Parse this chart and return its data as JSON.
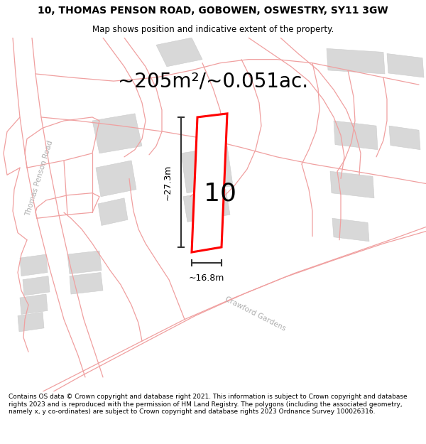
{
  "title": "10, THOMAS PENSON ROAD, GOBOWEN, OSWESTRY, SY11 3GW",
  "subtitle": "Map shows position and indicative extent of the property.",
  "area_text": "~205m²/~0.051ac.",
  "dim_width": "~16.8m",
  "dim_height": "~27.3m",
  "number_label": "10",
  "road_label_left": "Thomas Penson Road",
  "road_label_bottom": "Crawford Gardens",
  "footer": "Contains OS data © Crown copyright and database right 2021. This information is subject to Crown copyright and database rights 2023 and is reproduced with the permission of HM Land Registry. The polygons (including the associated geometry, namely x, y co-ordinates) are subject to Crown copyright and database rights 2023 Ordnance Survey 100026316.",
  "bg_color": "#ffffff",
  "plot_color": "#ff0000",
  "road_line_color": "#f0a0a0",
  "building_color": "#d8d8d8",
  "building_edge": "#cccccc",
  "dim_line_color": "#333333",
  "road_label_color": "#b0b0b0",
  "title_fontsize": 10,
  "subtitle_fontsize": 8.5,
  "area_fontsize": 20,
  "number_fontsize": 26,
  "dim_fontsize": 9,
  "road_label_fontsize": 7.5,
  "footer_fontsize": 6.5
}
